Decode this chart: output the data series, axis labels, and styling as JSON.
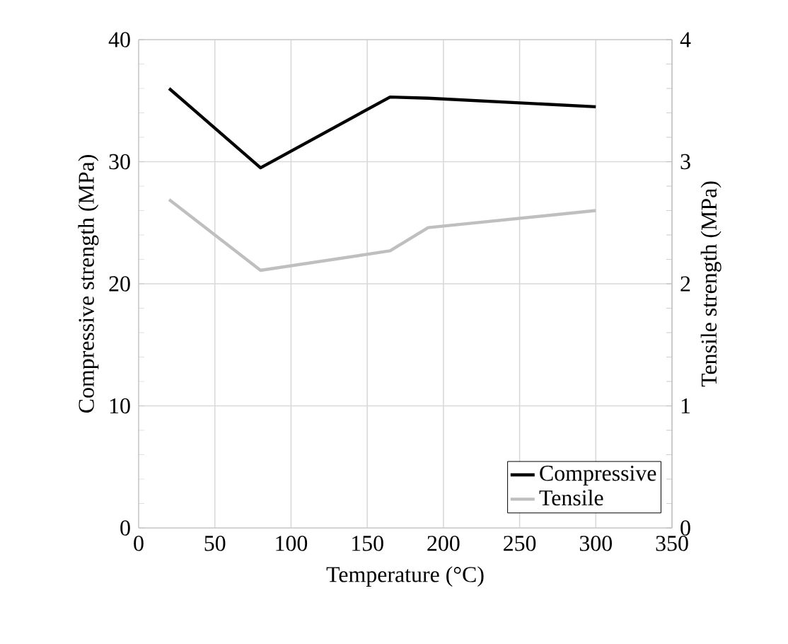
{
  "chart_data": {
    "type": "line",
    "xlabel": "Temperature (°C)",
    "ylabel": "Compressive strength (MPa)",
    "y2label": "Tensile strength (MPa)",
    "x": [
      20,
      80,
      165,
      190,
      300
    ],
    "series": [
      {
        "name": "Compressive",
        "color": "#000000",
        "values": [
          36,
          29.5,
          35.3,
          35.2,
          34.5
        ]
      },
      {
        "name": "Tensile",
        "color": "#bfbfbf",
        "axis": "y2",
        "values": [
          2.69,
          2.11,
          2.27,
          2.46,
          2.6
        ]
      }
    ],
    "xlim": [
      0,
      350
    ],
    "xticks": [
      0,
      50,
      100,
      150,
      200,
      250,
      300,
      350
    ],
    "ylim": [
      0,
      40
    ],
    "yticks": [
      0,
      10,
      20,
      30,
      40
    ],
    "y2lim": [
      0,
      4
    ],
    "y2ticks": [
      0,
      1,
      2,
      3,
      4
    ],
    "grid": true,
    "legend": "bottom right",
    "marker": "none",
    "line_style": "solid"
  }
}
